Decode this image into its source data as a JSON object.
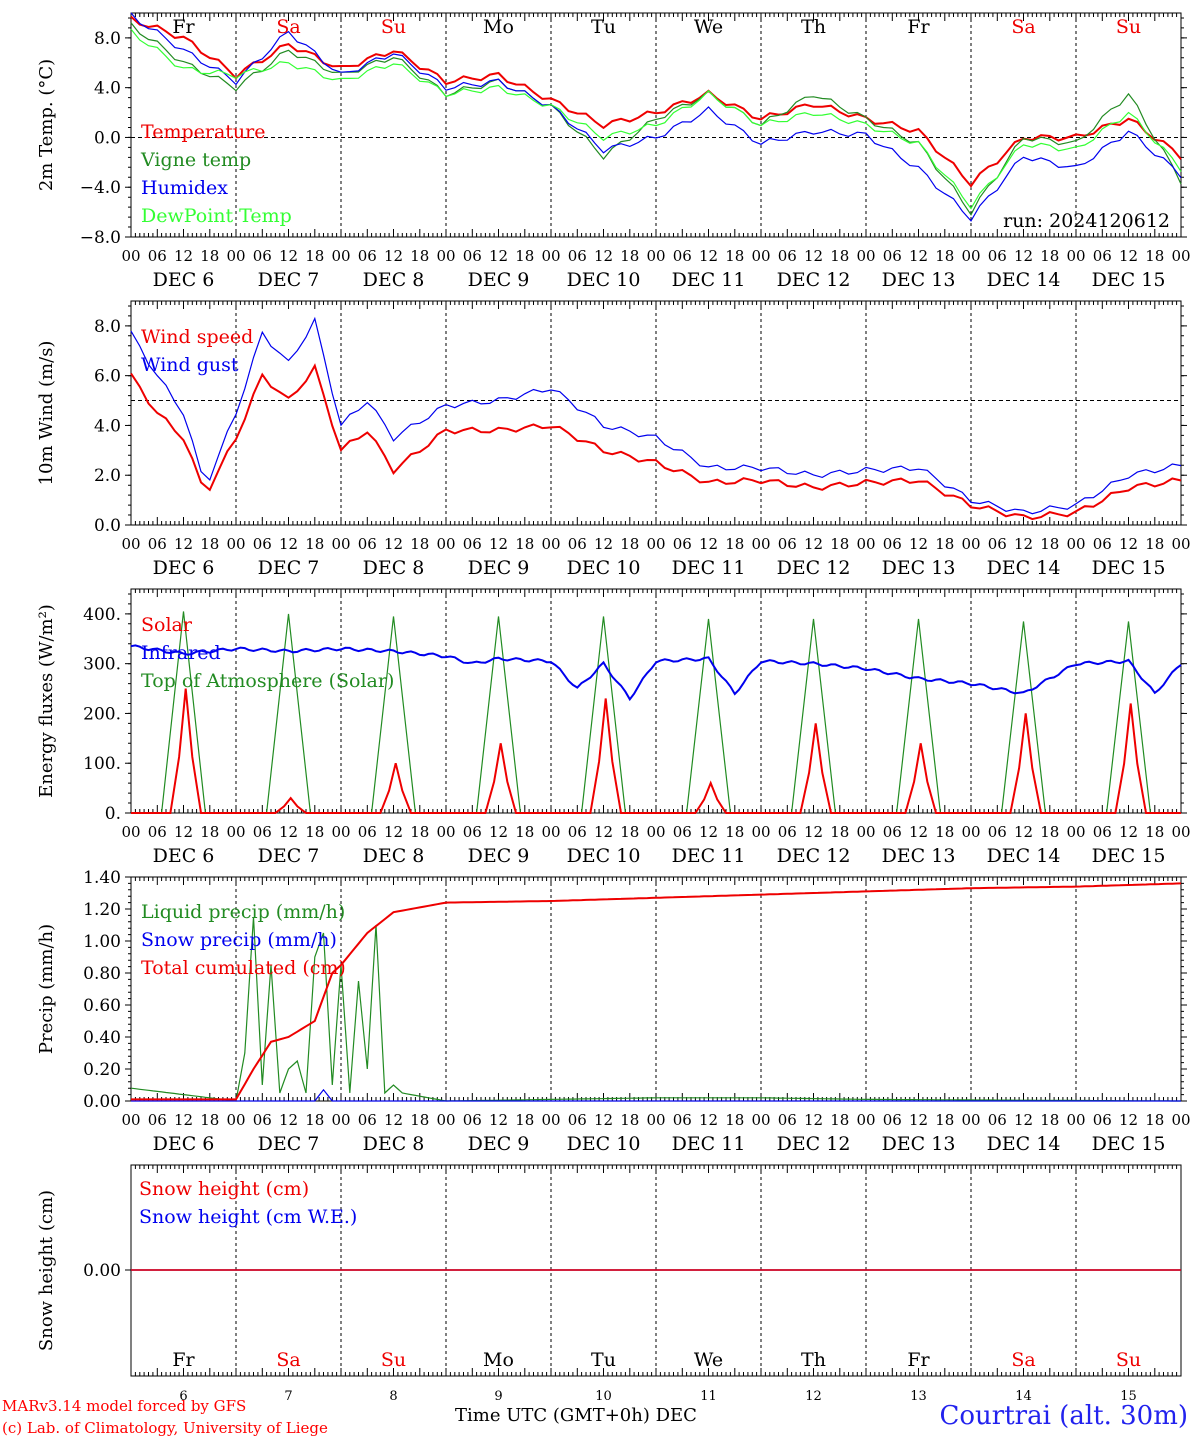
{
  "colors": {
    "red": "#ee0000",
    "green": "#228b22",
    "blue": "#0000ee",
    "lightgreen": "#33ff33",
    "grid": "#000000"
  },
  "x_axis": {
    "hour_labels": [
      "00",
      "06",
      "12",
      "18"
    ],
    "final_hour_label": "00",
    "dates": [
      "DEC  6",
      "DEC  7",
      "DEC  8",
      "DEC  9",
      "DEC 10",
      "DEC 11",
      "DEC 12",
      "DEC 13",
      "DEC 14",
      "DEC 15"
    ]
  },
  "weekdays": [
    {
      "label": "Fr",
      "color": "#000000"
    },
    {
      "label": "Sa",
      "color": "#ee0000"
    },
    {
      "label": "Su",
      "color": "#ee0000"
    },
    {
      "label": "Mo",
      "color": "#000000"
    },
    {
      "label": "Tu",
      "color": "#000000"
    },
    {
      "label": "We",
      "color": "#000000"
    },
    {
      "label": "Th",
      "color": "#000000"
    },
    {
      "label": "Fr",
      "color": "#000000"
    },
    {
      "label": "Sa",
      "color": "#ee0000"
    },
    {
      "label": "Su",
      "color": "#ee0000"
    }
  ],
  "bottom_day_numbers": [
    "6",
    "7",
    "8",
    "9",
    "10",
    "11",
    "12",
    "13",
    "14",
    "15"
  ],
  "footer": {
    "model_line": "MARv3.14 model forced by GFS",
    "credit_line": "(c) Lab. of Climatology, University of Liege",
    "time_label": "Time UTC (GMT+0h) DEC",
    "station": "Courtrai (alt. 30m)"
  },
  "chart_data": [
    {
      "type": "line",
      "ylabel": "2m Temp. (°C)",
      "ylim": [
        -8,
        10
      ],
      "yticks": [
        -8,
        -4,
        0,
        4,
        8
      ],
      "ytick_labels": [
        "−8.0",
        "−4.0",
        "0.0",
        "4.0",
        "8.0"
      ],
      "reference_line": 0,
      "annotation": "run: 2024120612",
      "x_hours": [
        0,
        12,
        24,
        36,
        48,
        60,
        72,
        84,
        96,
        108,
        120,
        132,
        144,
        156,
        168,
        180,
        192,
        204,
        216,
        228,
        240
      ],
      "series": [
        {
          "name": "Temperature",
          "color": "#ee0000",
          "values": [
            9.5,
            8.0,
            5.0,
            7.5,
            5.5,
            7.0,
            4.5,
            5.0,
            3.0,
            1.0,
            2.0,
            3.5,
            1.5,
            2.7,
            1.5,
            0.5,
            -3.7,
            0.0,
            0.0,
            1.5,
            -1.5
          ]
        },
        {
          "name": "Vigne temp",
          "color": "#228b22",
          "values": [
            9.0,
            6.0,
            4.0,
            7.0,
            5.0,
            6.5,
            3.5,
            4.5,
            2.5,
            -1.5,
            1.5,
            3.5,
            1.0,
            3.5,
            1.5,
            -0.5,
            -6.0,
            0.0,
            -0.5,
            3.5,
            -3.5
          ]
        },
        {
          "name": "Humidex",
          "color": "#0000ee",
          "values": [
            9.8,
            7.0,
            4.5,
            8.5,
            5.0,
            6.8,
            4.0,
            4.5,
            2.5,
            -1.0,
            0.0,
            2.2,
            -0.5,
            0.5,
            0.2,
            -2.5,
            -6.5,
            -1.5,
            -2.5,
            0.5,
            -3.0
          ]
        },
        {
          "name": "DewPoint Temp",
          "color": "#33ff33",
          "values": [
            8.5,
            5.5,
            5.0,
            6.0,
            4.5,
            6.0,
            3.5,
            4.0,
            2.5,
            0.0,
            1.0,
            3.5,
            1.0,
            2.0,
            1.0,
            -0.5,
            -5.5,
            -0.5,
            -1.0,
            2.0,
            -2.5
          ]
        }
      ]
    },
    {
      "type": "line",
      "ylabel": "10m Wind (m/s)",
      "ylim": [
        0,
        9
      ],
      "yticks": [
        0,
        2,
        4,
        6,
        8
      ],
      "ytick_labels": [
        "0.0",
        "2.0",
        "4.0",
        "6.0",
        "8.0"
      ],
      "reference_line": 5,
      "x_hours": [
        0,
        6,
        12,
        17,
        24,
        30,
        36,
        42,
        48,
        54,
        60,
        72,
        84,
        96,
        108,
        120,
        132,
        144,
        156,
        168,
        180,
        192,
        204,
        216,
        228,
        240
      ],
      "series": [
        {
          "name": "Wind speed",
          "color": "#ee0000",
          "values": [
            6.0,
            4.5,
            3.5,
            1.2,
            3.5,
            6.0,
            5.0,
            6.3,
            3.0,
            3.8,
            2.2,
            3.8,
            3.8,
            4.0,
            3.0,
            2.5,
            1.7,
            1.8,
            1.5,
            1.7,
            1.8,
            0.8,
            0.3,
            0.5,
            1.5,
            1.8
          ]
        },
        {
          "name": "Wind gust",
          "color": "#0000ee",
          "values": [
            7.7,
            6.0,
            4.5,
            1.5,
            4.5,
            7.7,
            6.5,
            8.2,
            4.0,
            5.0,
            3.5,
            4.8,
            5.0,
            5.5,
            4.0,
            3.5,
            2.3,
            2.3,
            2.0,
            2.2,
            2.3,
            1.0,
            0.5,
            0.8,
            2.0,
            2.4
          ]
        }
      ]
    },
    {
      "type": "line",
      "ylabel": "Energy fluxes (W/m²)",
      "ylim": [
        0,
        450
      ],
      "yticks": [
        0,
        100,
        200,
        300,
        400
      ],
      "ytick_labels": [
        "0.",
        "100.",
        "200.",
        "300.",
        "400."
      ],
      "diurnal_peaks": {
        "solar_peak": [
          250,
          30,
          100,
          140,
          230,
          60,
          180,
          140,
          200,
          220
        ],
        "toa_peak": [
          405,
          400,
          395,
          395,
          395,
          390,
          390,
          390,
          385,
          385
        ]
      },
      "series": [
        {
          "name": "Solar",
          "color": "#ee0000"
        },
        {
          "name": "Infrared",
          "color": "#0000ee",
          "x_hours": [
            0,
            12,
            24,
            36,
            48,
            60,
            66,
            72,
            78,
            84,
            96,
            102,
            108,
            114,
            120,
            132,
            138,
            144,
            156,
            168,
            180,
            192,
            204,
            216,
            228,
            234,
            240
          ],
          "values": [
            335,
            320,
            330,
            325,
            330,
            325,
            320,
            315,
            300,
            310,
            305,
            250,
            300,
            230,
            305,
            310,
            240,
            305,
            300,
            290,
            270,
            260,
            240,
            300,
            305,
            240,
            300
          ]
        },
        {
          "name": "Top of Atmosphere (Solar)",
          "color": "#228b22"
        }
      ]
    },
    {
      "type": "line",
      "ylabel": "Precip (mm/h)",
      "ylim": [
        0,
        1.4
      ],
      "yticks": [
        0,
        0.2,
        0.4,
        0.6,
        0.8,
        1.0,
        1.2,
        1.4
      ],
      "ytick_labels": [
        "0.00",
        "0.20",
        "0.40",
        "0.60",
        "0.80",
        "1.00",
        "1.20",
        "1.40"
      ],
      "series": [
        {
          "name": "Liquid precip (mm/h)",
          "color": "#228b22",
          "x_hours": [
            0,
            24,
            26,
            28,
            30,
            32,
            34,
            36,
            38,
            40,
            42,
            44,
            46,
            48,
            50,
            52,
            54,
            56,
            58,
            60,
            62,
            66,
            72,
            120,
            144,
            168,
            240
          ],
          "values": [
            0.08,
            0.0,
            0.3,
            1.15,
            0.1,
            0.85,
            0.05,
            0.2,
            0.25,
            0.05,
            0.9,
            1.05,
            0.1,
            0.85,
            0.05,
            0.75,
            0.2,
            1.1,
            0.05,
            0.1,
            0.05,
            0.03,
            0.0,
            0.02,
            0.02,
            0.01,
            0.0
          ]
        },
        {
          "name": "Snow precip (mm/h)",
          "color": "#0000ee",
          "x_hours": [
            0,
            42,
            44,
            46,
            240
          ],
          "values": [
            0.0,
            0.0,
            0.07,
            0.0,
            0.0
          ]
        },
        {
          "name": "Total cumulated (cm)",
          "color": "#ee0000",
          "x_hours": [
            0,
            24,
            28,
            32,
            36,
            42,
            46,
            48,
            54,
            60,
            66,
            72,
            96,
            120,
            144,
            168,
            192,
            216,
            240
          ],
          "values": [
            0.01,
            0.01,
            0.2,
            0.37,
            0.4,
            0.5,
            0.8,
            0.85,
            1.05,
            1.18,
            1.21,
            1.24,
            1.25,
            1.27,
            1.29,
            1.31,
            1.33,
            1.34,
            1.36
          ]
        }
      ]
    },
    {
      "type": "line",
      "ylabel": "Snow height (cm)",
      "ytick_labels": [
        "0.00"
      ],
      "series": [
        {
          "name": "Snow height (cm)",
          "color": "#ee0000",
          "values": [
            0,
            0
          ]
        },
        {
          "name": "Snow height (cm W.E.)",
          "color": "#0000ee",
          "values": [
            0,
            0
          ]
        }
      ]
    }
  ]
}
